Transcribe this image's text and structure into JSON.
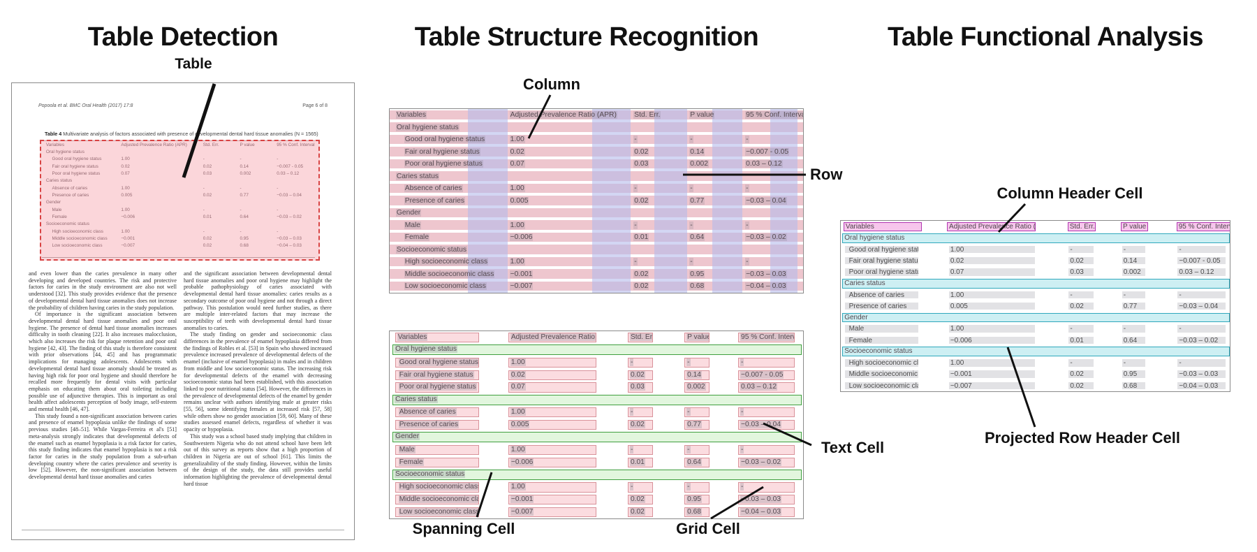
{
  "panels": {
    "detection": {
      "title": "Table Detection",
      "table_label": "Table"
    },
    "structure": {
      "title": "Table Structure Recognition",
      "labels": {
        "column": "Column",
        "row": "Row",
        "spanning": "Spanning Cell",
        "grid": "Grid Cell",
        "text": "Text Cell"
      }
    },
    "functional": {
      "title": "Table Functional Analysis",
      "labels": {
        "column_header": "Column Header Cell",
        "projected": "Projected Row Header Cell"
      }
    }
  },
  "document": {
    "header_left": "Popoola et al. BMC Oral Health  (2017) 17:8",
    "header_right": "Page 6 of 8",
    "caption_label": "Table 4",
    "caption_text": " Multivariate analysis of factors associated with presence of developmental dental hard tissue anomalies (N = 1565)",
    "body_left": [
      {
        "indent": false,
        "text": "and even lower than the caries prevalence in many other developing and developed countries. The risk and protective factors for caries in the study environment are also not well understood [32]. This study provides evidence that the presence of developmental dental hard tissue anomalies does not increase the probability of children having caries in the study population."
      },
      {
        "indent": true,
        "text": "Of importance is the significant association between developmental dental hard tissue anomalies and poor oral hygiene. The presence of dental hard tissue anomalies increases difficulty in tooth cleaning [22]. It also increases malocclusion, which also increases the risk for plaque retention and poor oral hygiene [42, 43]. The finding of this study is therefore consistent with prior observations [44, 45] and has programmatic implications for managing adolescents. Adolescents with developmental dental hard tissue anomaly should be treated as having high risk for poor oral hygiene and should therefore be recalled more frequently for dental visits with particular emphasis on educating them about oral toileting including possible use of adjunctive therapies. This is important as oral health affect adolescents perception of body image, self-esteem and mental health [46, 47]."
      },
      {
        "indent": true,
        "text": "This study found a non-significant association between caries and presence of enamel hypoplasia unlike the findings of some previous studies [48–51]. While Vargas-Ferreira et al's [51] meta-analysis strongly indicates that developmental defects of the enamel such as enamel hypoplasia is a risk factor for caries, this study finding indicates that enamel hypoplasia is not a risk factor for caries in the study population from a sub-urban developing country where the caries prevalence and severity is low [52]. However, the non-significant association between developmental dental hard tissue anomalies and caries"
      }
    ],
    "body_right": [
      {
        "indent": false,
        "text": "and the significant association between developmental dental hard tissue anomalies and poor oral hygiene may highlight the probable pathophysiology of caries associated with developmental dental hard tissue anomalies: caries results as a secondary outcome of poor oral hygiene and not through a direct pathway. This postulation would need further studies, as there are multiple inter-related factors that may increase the susceptibility of teeth with developmental dental hard tissue anomalies to caries."
      },
      {
        "indent": true,
        "text": "The study finding on gender and socioeconomic class differences in the prevalence of enamel hypoplasia differed from the findings of Robles et al. [53] in Spain who showed increased prevalence increased prevalence of developmental defects of the enamel (inclusive of enamel hypoplasia) in males and in children from middle and low socioeconomic status. The increasing risk for developmental defects of the enamel with decreasing socioeconomic status had been established, with this association linked to poor nutritional status [54]. However, the differences in the prevalence of developmental defects of the enamel by gender remains unclear with authors identifying male at greater risks [55, 56], some identifying females at increased risk [57, 58] while others show no gender association [59, 60]. Many of these studies assessed enamel defects, regardless of whether it was opacity or hypoplasia."
      },
      {
        "indent": true,
        "text": "This study was a school based study implying that children in Southwestern Nigeria who do not attend school have been left out of this survey as reports show that a high proportion of children in Nigeria are out of school [61]. This limits the generalizability of the study finding. However, within the limits of the design of the study, the data still provides useful information highlighting the prevalence of developmental dental hard tissue"
      }
    ]
  },
  "table": {
    "columns": [
      "Variables",
      "Adjusted Prevalence Ratio (APR)",
      "Std. Err.",
      "P value",
      "95 % Conf. Interval"
    ],
    "rows": [
      {
        "type": "section",
        "cells": [
          "Oral hygiene status"
        ]
      },
      {
        "type": "data",
        "cells": [
          "Good oral hygiene status",
          "1.00",
          "-",
          "-",
          "-"
        ]
      },
      {
        "type": "data",
        "cells": [
          "Fair oral hygiene status",
          "0.02",
          "0.02",
          "0.14",
          "−0.007 - 0.05"
        ]
      },
      {
        "type": "data",
        "cells": [
          "Poor oral hygiene status",
          "0.07",
          "0.03",
          "0.002",
          "0.03 – 0.12"
        ]
      },
      {
        "type": "section",
        "cells": [
          "Caries status"
        ]
      },
      {
        "type": "data",
        "cells": [
          "Absence of caries",
          "1.00",
          "-",
          "-",
          "-"
        ]
      },
      {
        "type": "data",
        "cells": [
          "Presence of caries",
          "0.005",
          "0.02",
          "0.77",
          "−0.03 – 0.04"
        ]
      },
      {
        "type": "section",
        "cells": [
          "Gender"
        ]
      },
      {
        "type": "data",
        "cells": [
          "Male",
          "1.00",
          "-",
          "-",
          "-"
        ]
      },
      {
        "type": "data",
        "cells": [
          "Female",
          "−0.006",
          "0.01",
          "0.64",
          "−0.03 – 0.02"
        ]
      },
      {
        "type": "section",
        "cells": [
          "Socioeconomic status"
        ]
      },
      {
        "type": "data",
        "cells": [
          "High socioeconomic class",
          "1.00",
          "-",
          "-",
          "-"
        ]
      },
      {
        "type": "data",
        "cells": [
          "Middle socioeconomic class",
          "−0.001",
          "0.02",
          "0.95",
          "−0.03 – 0.03"
        ]
      },
      {
        "type": "data",
        "cells": [
          "Low socioeconomic class",
          "−0.007",
          "0.02",
          "0.68",
          "−0.04 – 0.03"
        ]
      }
    ]
  },
  "colors": {
    "row_highlight": "#eec6ce",
    "column_highlight": "#b5baeb",
    "detection_fill": "#f699a3",
    "detection_border": "#d84343",
    "grid_cell_fill": "#fbdce0",
    "grid_cell_border": "#d9929a",
    "spanning_fill": "#e2f6de",
    "spanning_border": "#3f9f3f",
    "column_header_fill": "#f7c6ec",
    "column_header_border": "#b136b1",
    "projected_fill": "#cdeff3",
    "projected_border": "#2fa8bc"
  }
}
